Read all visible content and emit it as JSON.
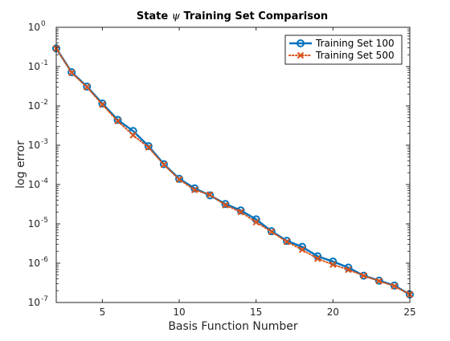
{
  "chart_data": {
    "type": "line",
    "title_prefix": "State ",
    "title_symbol": "ψ",
    "title_suffix": " Training Set Comparison",
    "xlabel": "Basis Function Number",
    "ylabel": "log error",
    "xlim": [
      2,
      25
    ],
    "ylim": [
      1e-07,
      1
    ],
    "yscale": "log",
    "grid": false,
    "legend_position": "top-right",
    "x_ticks": [
      5,
      10,
      15,
      20,
      25
    ],
    "y_ticks": [
      {
        "value": 1e-07,
        "base": "10",
        "exp": "-7"
      },
      {
        "value": 1e-06,
        "base": "10",
        "exp": "-6"
      },
      {
        "value": 1e-05,
        "base": "10",
        "exp": "-5"
      },
      {
        "value": 0.0001,
        "base": "10",
        "exp": "-4"
      },
      {
        "value": 0.001,
        "base": "10",
        "exp": "-3"
      },
      {
        "value": 0.01,
        "base": "10",
        "exp": "-2"
      },
      {
        "value": 0.1,
        "base": "10",
        "exp": "-1"
      },
      {
        "value": 1,
        "base": "10",
        "exp": "0"
      }
    ],
    "x": [
      2,
      3,
      4,
      5,
      6,
      7,
      8,
      9,
      10,
      11,
      12,
      13,
      14,
      15,
      16,
      17,
      18,
      19,
      20,
      21,
      22,
      23,
      24,
      25
    ],
    "series": [
      {
        "name": "Training Set 100",
        "color": "#0072BD",
        "line_style": "solid",
        "marker": "circle",
        "values": [
          0.29,
          0.072,
          0.031,
          0.0115,
          0.0044,
          0.0023,
          0.00095,
          0.00033,
          0.00014,
          8e-05,
          5.3e-05,
          3.2e-05,
          2.2e-05,
          1.3e-05,
          6.5e-06,
          3.7e-06,
          2.6e-06,
          1.5e-06,
          1.1e-06,
          7.7e-07,
          4.8e-07,
          3.6e-07,
          2.7e-07,
          1.6e-07
        ]
      },
      {
        "name": "Training Set 500",
        "color": "#D95319",
        "line_style": "dotted",
        "marker": "x",
        "values": [
          0.29,
          0.07,
          0.03,
          0.0108,
          0.0041,
          0.0018,
          0.00088,
          0.00032,
          0.000135,
          7.3e-05,
          5.5e-05,
          3e-05,
          2e-05,
          1.1e-05,
          6.3e-06,
          3.5e-06,
          2.2e-06,
          1.3e-06,
          9.2e-07,
          6.8e-07,
          4.8e-07,
          3.5e-07,
          2.6e-07,
          1.6e-07
        ]
      }
    ]
  }
}
